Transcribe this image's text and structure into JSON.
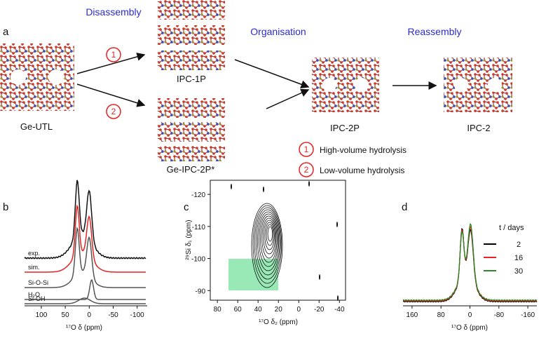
{
  "panel_a": {
    "label": "a",
    "steps": [
      "Disassembly",
      "Organisation",
      "Reassembly"
    ],
    "route_markers": [
      "1",
      "2"
    ],
    "structures": [
      "Ge-UTL",
      "IPC-1P",
      "Ge-IPC-2P*",
      "IPC-2P",
      "IPC-2"
    ],
    "legend": [
      {
        "marker": "1",
        "text": "High-volume hydrolysis"
      },
      {
        "marker": "2",
        "text": "Low-volume hydrolysis"
      }
    ]
  },
  "panel_b": {
    "label": "b",
    "traces": [
      "exp.",
      "sim.",
      "Si-O-Si",
      "H₂O",
      "Si-OH"
    ],
    "xlabel": "¹⁷O δ (ppm)",
    "xlim": [
      135,
      -118
    ],
    "xticks": [
      100,
      50,
      0,
      -50,
      -100
    ]
  },
  "panel_c": {
    "label": "c",
    "xlabel": "¹⁷O δ₂ (ppm)",
    "ylabel": "²⁹Si δ₁ (ppm)",
    "xlim": [
      87,
      -46
    ],
    "ylim": [
      -87,
      -124.4
    ],
    "xticks": [
      80,
      60,
      40,
      20,
      0,
      -20,
      -40
    ],
    "yticks": [
      -120,
      -110,
      -100,
      -90
    ]
  },
  "panel_d": {
    "label": "d",
    "legend_title": "t / days",
    "series": [
      {
        "name": "2",
        "color": "#000000"
      },
      {
        "name": "16",
        "color": "#e8251f"
      },
      {
        "name": "30",
        "color": "#2a8a26"
      }
    ],
    "xlabel": "¹⁷O δ (ppm)",
    "xlim": [
      185,
      -185
    ],
    "xticks": [
      160,
      80,
      0,
      -80,
      -160
    ]
  }
}
